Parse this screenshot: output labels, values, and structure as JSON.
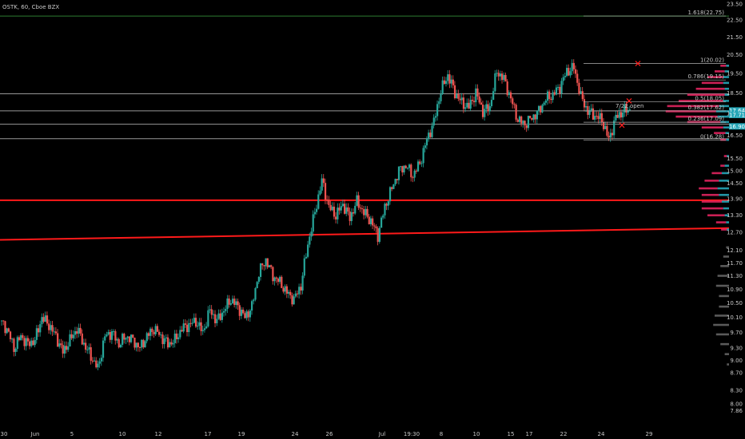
{
  "header": {
    "symbol_line": "OSTK, 60, Cboe BZX"
  },
  "colors": {
    "background": "#000000",
    "up": "#26a69a",
    "down": "#ef5350",
    "trendline": "#ff1a1a",
    "fib_line": "#b2b2b2",
    "fib_top_line": "#2e7d32",
    "vp_up": "#26a6b8",
    "vp_down": "#e0245e",
    "vp_low": "#5a5a5a",
    "axis_text": "#c8c8c8"
  },
  "chart_data": {
    "type": "candlestick",
    "title": "OSTK, 60, Cboe BZX",
    "ylim": [
      7.6,
      23.55
    ],
    "y_scale": "log",
    "grid": false,
    "y_ticks": [
      "23.50",
      "22.50",
      "21.50",
      "20.50",
      "19.50",
      "18.50",
      "17.50",
      "16.50",
      "15.50",
      "15.00",
      "14.50",
      "13.90",
      "13.30",
      "12.70",
      "12.10",
      "11.70",
      "11.30",
      "10.90",
      "10.50",
      "10.10",
      "9.70",
      "9.30",
      "9.00",
      "8.70",
      "8.30",
      "8.00",
      "7.86"
    ],
    "x_ticks": [
      "30",
      "Jun",
      "5",
      "10",
      "12",
      "17",
      "19",
      "24",
      "26",
      "Jul",
      "19:30",
      "8",
      "10",
      "15",
      "17",
      "22",
      "24",
      "29"
    ],
    "price_tags": [
      {
        "label": "17.64",
        "value": 17.64,
        "color": "#26a6b8"
      },
      {
        "label": "17.71",
        "value": 17.43,
        "color": "#26a6b8"
      },
      {
        "label": "16.90",
        "value": 16.9,
        "color": "#26a6b8"
      }
    ],
    "fib_levels": [
      {
        "label": "1.618(22.75)",
        "value": 22.75
      },
      {
        "label": "1(20.02)",
        "value": 20.02
      },
      {
        "label": "0.786(19.15)",
        "value": 19.15
      },
      {
        "label": "0.5(18.05)",
        "value": 18.05
      },
      {
        "label": "0.382(17.62)",
        "value": 17.62
      },
      {
        "label": "0.236(17.09)",
        "value": 17.09
      },
      {
        "label": "0(16.28)",
        "value": 16.28
      }
    ],
    "annotation": "7/22 open",
    "horizontal_lines": [
      18.45,
      17.62,
      17.0,
      16.35
    ],
    "trendlines": [
      {
        "from": [
          0,
          13.85
        ],
        "to": [
          1,
          13.85
        ]
      },
      {
        "from": [
          0,
          12.45
        ],
        "to": [
          1,
          12.85
        ]
      }
    ],
    "price_path": [
      10.0,
      9.8,
      9.3,
      9.6,
      9.4,
      9.5,
      10.1,
      9.9,
      9.6,
      9.2,
      9.5,
      9.8,
      9.4,
      9.1,
      8.8,
      9.6,
      9.7,
      9.4,
      9.6,
      9.5,
      9.3,
      9.6,
      9.8,
      9.6,
      9.4,
      9.5,
      9.8,
      9.9,
      10.0,
      9.7,
      10.3,
      10.0,
      10.3,
      10.6,
      10.4,
      10.1,
      10.4,
      11.4,
      11.8,
      11.3,
      11.1,
      10.8,
      10.6,
      11.0,
      12.3,
      13.4,
      14.6,
      13.6,
      13.3,
      13.7,
      13.2,
      13.8,
      13.4,
      13.1,
      12.6,
      13.6,
      14.3,
      15.0,
      15.2,
      14.8,
      15.3,
      16.3,
      17.1,
      18.6,
      19.4,
      18.5,
      18.0,
      17.8,
      18.5,
      17.6,
      17.8,
      19.6,
      19.2,
      18.2,
      17.2,
      17.0,
      17.3,
      17.6,
      18.2,
      18.4,
      18.8,
      19.6,
      19.8,
      18.3,
      17.6,
      17.4,
      17.2,
      16.3,
      17.3,
      17.6,
      17.7
    ],
    "volume_profile": [
      {
        "price": 19.9,
        "up": 4,
        "down": 8
      },
      {
        "price": 19.6,
        "up": 6,
        "down": 14
      },
      {
        "price": 19.3,
        "up": 8,
        "down": 22
      },
      {
        "price": 19.0,
        "up": 8,
        "down": 30
      },
      {
        "price": 18.7,
        "up": 6,
        "down": 40
      },
      {
        "price": 18.4,
        "up": 6,
        "down": 52
      },
      {
        "price": 18.1,
        "up": 8,
        "down": 62
      },
      {
        "price": 17.85,
        "up": 14,
        "down": 72
      },
      {
        "price": 17.6,
        "up": 18,
        "down": 70
      },
      {
        "price": 17.35,
        "up": 16,
        "down": 58
      },
      {
        "price": 17.1,
        "up": 12,
        "down": 46
      },
      {
        "price": 16.85,
        "up": 8,
        "down": 30
      },
      {
        "price": 16.6,
        "up": 5,
        "down": 16
      },
      {
        "price": 16.3,
        "up": 4,
        "down": 8
      },
      {
        "price": 15.6,
        "up": 3,
        "down": 4
      },
      {
        "price": 15.2,
        "up": 6,
        "down": 6
      },
      {
        "price": 14.9,
        "up": 10,
        "down": 14
      },
      {
        "price": 14.6,
        "up": 14,
        "down": 20
      },
      {
        "price": 14.3,
        "up": 16,
        "down": 26
      },
      {
        "price": 14.05,
        "up": 14,
        "down": 24
      },
      {
        "price": 13.8,
        "up": 10,
        "down": 28
      },
      {
        "price": 13.55,
        "up": 8,
        "down": 30
      },
      {
        "price": 13.3,
        "up": 6,
        "down": 24
      },
      {
        "price": 13.05,
        "up": 4,
        "down": 14
      },
      {
        "price": 12.8,
        "up": 3,
        "down": 8
      },
      {
        "price": 12.2,
        "up": 0,
        "down": 4
      },
      {
        "price": 11.9,
        "up": 0,
        "down": 8
      },
      {
        "price": 11.6,
        "up": 0,
        "down": 12
      },
      {
        "price": 11.3,
        "up": 0,
        "down": 16
      },
      {
        "price": 11.0,
        "up": 0,
        "down": 18
      },
      {
        "price": 10.7,
        "up": 0,
        "down": 14
      },
      {
        "price": 10.4,
        "up": 0,
        "down": 14
      },
      {
        "price": 10.15,
        "up": 0,
        "down": 20
      },
      {
        "price": 9.9,
        "up": 0,
        "down": 22
      },
      {
        "price": 9.65,
        "up": 0,
        "down": 18
      },
      {
        "price": 9.4,
        "up": 0,
        "down": 12
      },
      {
        "price": 9.15,
        "up": 0,
        "down": 6
      },
      {
        "price": 8.9,
        "up": 0,
        "down": 3
      }
    ]
  }
}
